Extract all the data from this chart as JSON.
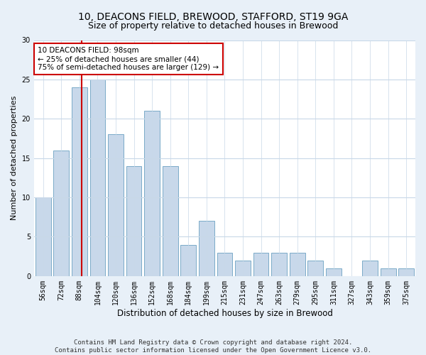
{
  "title1": "10, DEACONS FIELD, BREWOOD, STAFFORD, ST19 9GA",
  "title2": "Size of property relative to detached houses in Brewood",
  "xlabel": "Distribution of detached houses by size in Brewood",
  "ylabel": "Number of detached properties",
  "categories": [
    "56sqm",
    "72sqm",
    "88sqm",
    "104sqm",
    "120sqm",
    "136sqm",
    "152sqm",
    "168sqm",
    "184sqm",
    "199sqm",
    "215sqm",
    "231sqm",
    "247sqm",
    "263sqm",
    "279sqm",
    "295sqm",
    "311sqm",
    "327sqm",
    "343sqm",
    "359sqm",
    "375sqm"
  ],
  "values": [
    10,
    16,
    24,
    25,
    18,
    14,
    21,
    14,
    4,
    7,
    3,
    2,
    3,
    3,
    3,
    2,
    1,
    0,
    2,
    1,
    1
  ],
  "bar_color": "#c8d8ea",
  "bar_edge_color": "#7aaac8",
  "bar_edge_width": 0.7,
  "red_line_color": "#cc0000",
  "annotation_text": "10 DEACONS FIELD: 98sqm\n← 25% of detached houses are smaller (44)\n75% of semi-detached houses are larger (129) →",
  "annotation_box_color": "#ffffff",
  "annotation_box_edge_color": "#cc0000",
  "ylim": [
    0,
    30
  ],
  "yticks": [
    0,
    5,
    10,
    15,
    20,
    25,
    30
  ],
  "footer": "Contains HM Land Registry data © Crown copyright and database right 2024.\nContains public sector information licensed under the Open Government Licence v3.0.",
  "bg_color": "#e8f0f8",
  "plot_bg_color": "#ffffff",
  "grid_color": "#c8d8e8",
  "title1_fontsize": 10,
  "title2_fontsize": 9,
  "xlabel_fontsize": 8.5,
  "ylabel_fontsize": 8,
  "tick_fontsize": 7,
  "footer_fontsize": 6.5,
  "annot_fontsize": 7.5
}
